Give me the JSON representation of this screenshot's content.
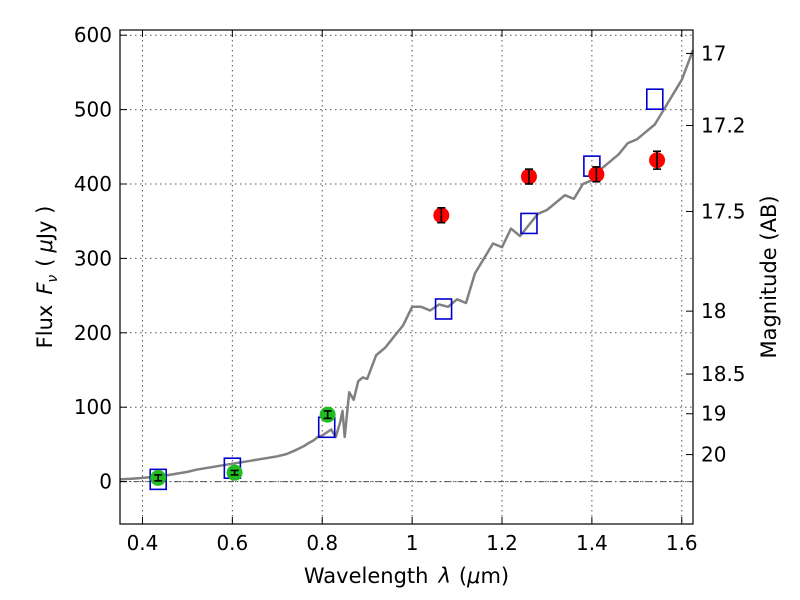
{
  "chart_data": {
    "type": "scatter",
    "xlabel_text": "Wavelength",
    "xlabel_symbol": "λ",
    "xlabel_unit_open": "(",
    "xlabel_unit_mu": "μ",
    "xlabel_unit_rest": "m)",
    "ylabel_text": "Flux",
    "ylabel_symbol": "F",
    "ylabel_sub": "ν",
    "ylabel_unit_open": "(",
    "ylabel_unit_mu": "μ",
    "ylabel_unit_rest": "Jy )",
    "y2label": "Magnitude (AB)",
    "xlim": [
      0.35,
      1.625
    ],
    "ylim": [
      -57,
      607
    ],
    "grid": true,
    "x_ticks": [
      0.4,
      0.6,
      0.8,
      1.0,
      1.2,
      1.4,
      1.6
    ],
    "x_tick_labels": [
      "0.4",
      "0.6",
      "0.8",
      "1",
      "1.2",
      "1.4",
      "1.6"
    ],
    "y_ticks": [
      0,
      100,
      200,
      300,
      400,
      500,
      600
    ],
    "y_tick_labels": [
      "0",
      "100",
      "200",
      "300",
      "400",
      "500",
      "600"
    ],
    "mag_ticks": [
      17,
      17.2,
      17.5,
      18,
      18.5,
      19,
      20
    ],
    "mag_tick_labels": [
      "17",
      "17.2",
      "17.5",
      "18",
      "18.5",
      "19",
      "20"
    ],
    "colors": {
      "model": "#808080",
      "model_boxes": "#0000cc",
      "optical": "#22bb22",
      "nir": "#ff0000",
      "errorbar": "#000000"
    },
    "series": [
      {
        "kind": "model_spectrum",
        "x": [
          0.35,
          0.38,
          0.4,
          0.42,
          0.44,
          0.46,
          0.48,
          0.5,
          0.52,
          0.54,
          0.56,
          0.58,
          0.6,
          0.62,
          0.64,
          0.66,
          0.68,
          0.7,
          0.72,
          0.74,
          0.75,
          0.76,
          0.77,
          0.78,
          0.79,
          0.8,
          0.81,
          0.82,
          0.83,
          0.84,
          0.845,
          0.85,
          0.86,
          0.87,
          0.88,
          0.89,
          0.9,
          0.92,
          0.94,
          0.96,
          0.98,
          1.0,
          1.02,
          1.04,
          1.06,
          1.08,
          1.1,
          1.12,
          1.14,
          1.16,
          1.18,
          1.2,
          1.22,
          1.24,
          1.26,
          1.28,
          1.3,
          1.32,
          1.34,
          1.36,
          1.38,
          1.4,
          1.42,
          1.44,
          1.46,
          1.48,
          1.5,
          1.52,
          1.54,
          1.56,
          1.58,
          1.6,
          1.625
        ],
        "y": [
          3,
          4,
          5,
          6,
          7,
          9,
          11,
          13,
          16,
          18,
          20,
          22,
          24,
          26,
          28,
          30,
          32,
          34,
          37,
          42,
          45,
          48,
          52,
          55,
          60,
          62,
          66,
          70,
          60,
          80,
          95,
          60,
          120,
          110,
          135,
          140,
          138,
          170,
          180,
          195,
          210,
          235,
          235,
          230,
          238,
          235,
          245,
          240,
          280,
          300,
          320,
          315,
          340,
          330,
          345,
          360,
          365,
          375,
          385,
          380,
          400,
          405,
          420,
          430,
          440,
          455,
          460,
          470,
          480,
          500,
          520,
          540,
          580
        ]
      },
      {
        "kind": "model_boxes",
        "x": [
          0.435,
          0.6,
          0.81,
          1.07,
          1.26,
          1.4,
          1.54
        ],
        "y": [
          3,
          18,
          73,
          232,
          347,
          424,
          514
        ]
      },
      {
        "kind": "optical_photometry",
        "x": [
          0.435,
          0.605,
          0.812
        ],
        "y": [
          5,
          12,
          90
        ],
        "err": [
          4,
          3,
          5
        ]
      },
      {
        "kind": "nir_photometry",
        "x": [
          1.065,
          1.26,
          1.41,
          1.545
        ],
        "y": [
          358,
          410,
          413,
          432
        ],
        "err": [
          10,
          10,
          10,
          12
        ]
      }
    ]
  }
}
